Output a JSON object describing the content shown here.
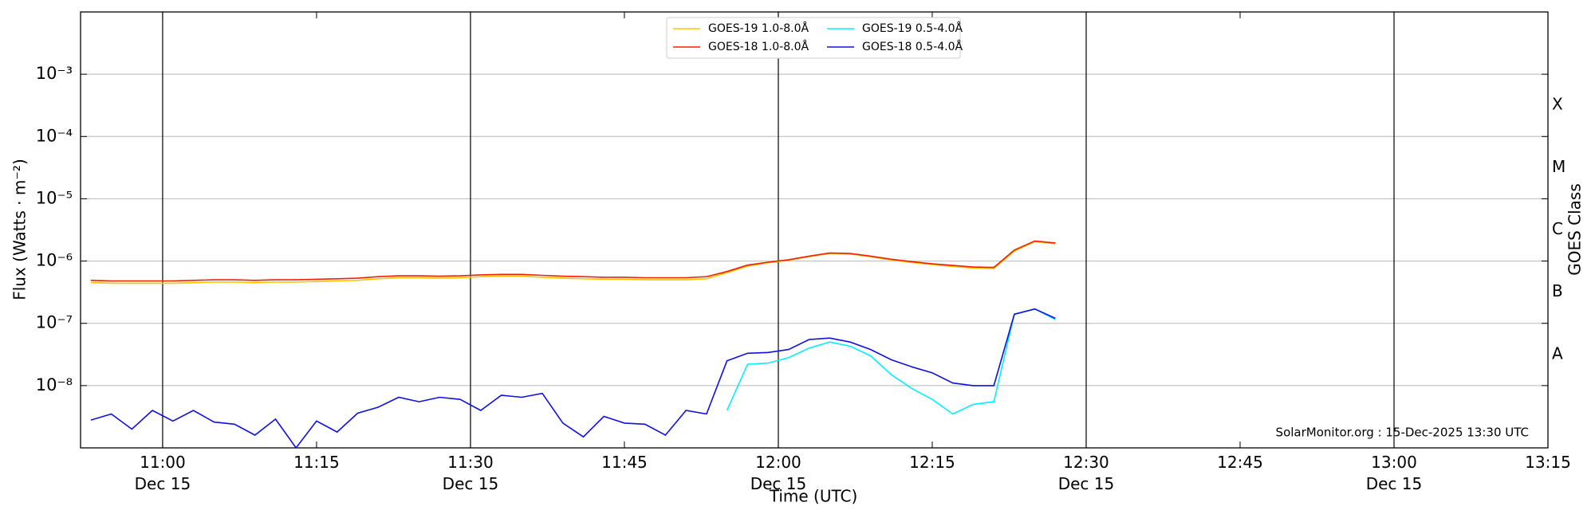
{
  "chart_data": {
    "type": "line",
    "ylabel": "Flux (Watts · m⁻²)",
    "xlabel": "Time (UTC)",
    "y2label": "GOES Class",
    "annotation": "SolarMonitor.org : 15-Dec-2025 13:30 UTC",
    "log_y": true,
    "grid": true,
    "legend": "upper center",
    "xlim": [
      "10:52",
      "13:15"
    ],
    "ylim": [
      1e-09,
      0.01
    ],
    "xticks": [
      {
        "value": "11:00",
        "label": "11:00\nDec 15"
      },
      {
        "value": "11:15",
        "label": "11:15"
      },
      {
        "value": "11:30",
        "label": "11:30\nDec 15"
      },
      {
        "value": "11:45",
        "label": "11:45"
      },
      {
        "value": "12:00",
        "label": "12:00\nDec 15"
      },
      {
        "value": "12:15",
        "label": "12:15"
      },
      {
        "value": "12:30",
        "label": "12:30\nDec 15"
      },
      {
        "value": "12:45",
        "label": "12:45"
      },
      {
        "value": "13:00",
        "label": "13:00\nDec 15"
      },
      {
        "value": "13:15",
        "label": "13:15"
      }
    ],
    "yticks": [
      {
        "value": 1e-08,
        "label": "10⁻⁸"
      },
      {
        "value": 1e-07,
        "label": "10⁻⁷"
      },
      {
        "value": 1e-06,
        "label": "10⁻⁶"
      },
      {
        "value": 1e-05,
        "label": "10⁻⁵"
      },
      {
        "value": 0.0001,
        "label": "10⁻⁴"
      },
      {
        "value": 0.001,
        "label": "10⁻³"
      }
    ],
    "goes_classes": [
      {
        "value": 1e-08,
        "label": "A"
      },
      {
        "value": 1e-07,
        "label": "B"
      },
      {
        "value": 1e-06,
        "label": "C"
      },
      {
        "value": 1e-05,
        "label": "M"
      },
      {
        "value": 0.0001,
        "label": "X"
      }
    ],
    "x": [
      "10:53",
      "10:55",
      "10:57",
      "10:59",
      "11:01",
      "11:03",
      "11:05",
      "11:07",
      "11:09",
      "11:11",
      "11:13",
      "11:15",
      "11:17",
      "11:19",
      "11:21",
      "11:23",
      "11:25",
      "11:27",
      "11:29",
      "11:31",
      "11:33",
      "11:35",
      "11:37",
      "11:39",
      "11:41",
      "11:43",
      "11:45",
      "11:47",
      "11:49",
      "11:51",
      "11:53",
      "11:55",
      "11:57",
      "11:59",
      "12:01",
      "12:03",
      "12:05",
      "12:07",
      "12:09",
      "12:11",
      "12:13",
      "12:15",
      "12:17",
      "12:19",
      "12:21",
      "12:23",
      "12:25",
      "12:27"
    ],
    "series": [
      {
        "name": "GOES-19 1.0-8.0Å",
        "color": "#ffc400",
        "values": [
          4.5e-07,
          4.4e-07,
          4.4e-07,
          4.4e-07,
          4.4e-07,
          4.5e-07,
          4.6e-07,
          4.6e-07,
          4.5e-07,
          4.6e-07,
          4.6e-07,
          4.7e-07,
          4.8e-07,
          4.9e-07,
          5.2e-07,
          5.4e-07,
          5.4e-07,
          5.3e-07,
          5.4e-07,
          5.6e-07,
          5.7e-07,
          5.7e-07,
          5.5e-07,
          5.3e-07,
          5.2e-07,
          5.1e-07,
          5.1e-07,
          5e-07,
          5e-07,
          5e-07,
          5.2e-07,
          6.5e-07,
          8.3e-07,
          9.4e-07,
          1.03e-06,
          1.18e-06,
          1.32e-06,
          1.3e-06,
          1.17e-06,
          1.04e-06,
          9.5e-07,
          8.8e-07,
          8.2e-07,
          7.7e-07,
          7.6e-07,
          1.45e-06,
          2.05e-06,
          1.9e-06
        ]
      },
      {
        "name": "GOES-18 1.0-8.0Å",
        "color": "#f02000",
        "values": [
          4.9e-07,
          4.8e-07,
          4.8e-07,
          4.8e-07,
          4.8e-07,
          4.9e-07,
          5e-07,
          5e-07,
          4.9e-07,
          5e-07,
          5e-07,
          5.1e-07,
          5.2e-07,
          5.3e-07,
          5.6e-07,
          5.8e-07,
          5.8e-07,
          5.7e-07,
          5.8e-07,
          6e-07,
          6.1e-07,
          6.1e-07,
          5.9e-07,
          5.7e-07,
          5.6e-07,
          5.5e-07,
          5.5e-07,
          5.4e-07,
          5.4e-07,
          5.4e-07,
          5.6e-07,
          6.8e-07,
          8.6e-07,
          9.6e-07,
          1.05e-06,
          1.2e-06,
          1.35e-06,
          1.32e-06,
          1.2e-06,
          1.07e-06,
          9.8e-07,
          9e-07,
          8.5e-07,
          8e-07,
          7.9e-07,
          1.5e-06,
          2.1e-06,
          1.95e-06
        ]
      },
      {
        "name": "GOES-19 0.5-4.0Å",
        "color": "#00f0ff",
        "values": [
          null,
          null,
          null,
          null,
          null,
          null,
          null,
          null,
          null,
          null,
          null,
          null,
          null,
          null,
          null,
          null,
          null,
          null,
          null,
          null,
          null,
          null,
          null,
          null,
          null,
          null,
          null,
          null,
          null,
          null,
          null,
          4e-09,
          2.2e-08,
          2.3e-08,
          2.8e-08,
          4e-08,
          5e-08,
          4.3e-08,
          3e-08,
          1.5e-08,
          9e-09,
          6e-09,
          3.5e-09,
          5e-09,
          5.5e-09,
          1.4e-07,
          1.7e-07,
          1.15e-07
        ]
      },
      {
        "name": "GOES-18 0.5-4.0Å",
        "color": "#1010e0",
        "values": [
          2.8e-09,
          3.5e-09,
          2e-09,
          4e-09,
          2.7e-09,
          4e-09,
          2.6e-09,
          2.4e-09,
          1.6e-09,
          2.9e-09,
          1e-09,
          2.7e-09,
          1.8e-09,
          3.6e-09,
          4.5e-09,
          6.5e-09,
          5.5e-09,
          6.5e-09,
          6e-09,
          4e-09,
          7e-09,
          6.5e-09,
          7.5e-09,
          2.5e-09,
          1.5e-09,
          3.2e-09,
          2.5e-09,
          2.4e-09,
          1.6e-09,
          4e-09,
          3.5e-09,
          2.5e-08,
          3.3e-08,
          3.4e-08,
          3.8e-08,
          5.5e-08,
          5.8e-08,
          5e-08,
          3.8e-08,
          2.6e-08,
          2e-08,
          1.6e-08,
          1.1e-08,
          1e-08,
          1e-08,
          1.4e-07,
          1.7e-07,
          1.2e-07
        ]
      }
    ]
  }
}
